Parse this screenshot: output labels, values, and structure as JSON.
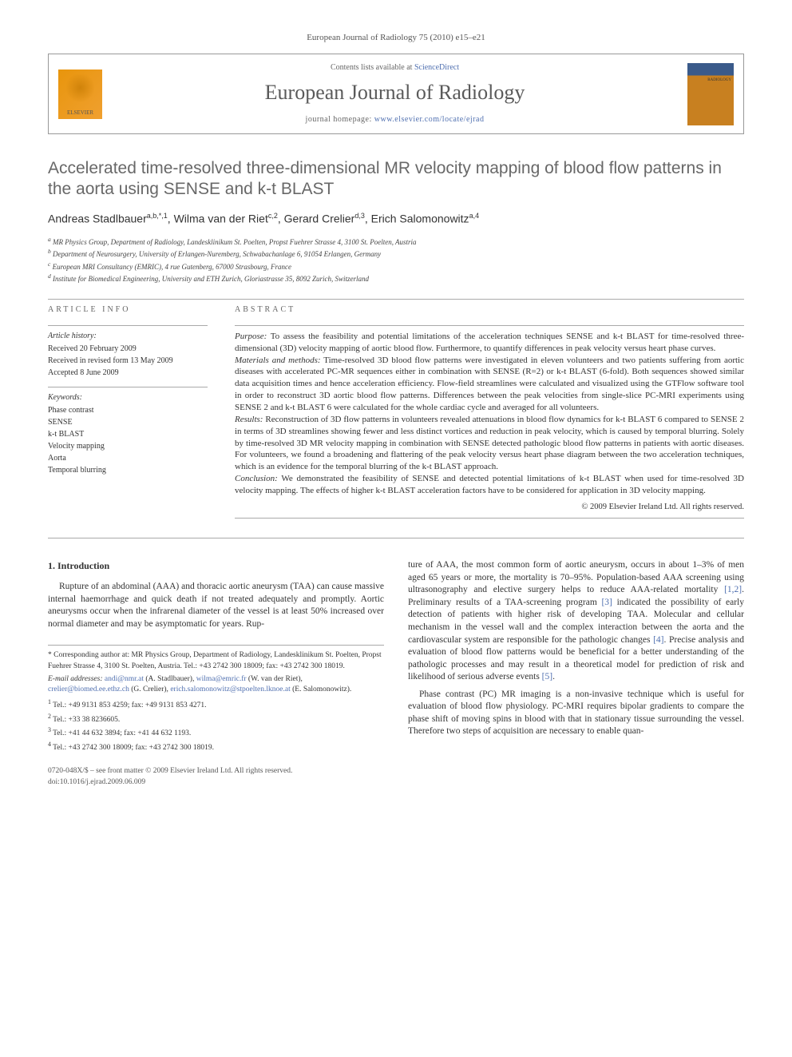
{
  "header": {
    "citation": "European Journal of Radiology 75 (2010) e15–e21",
    "contents_prefix": "Contents lists available at ",
    "contents_link": "ScienceDirect",
    "journal": "European Journal of Radiology",
    "homepage_prefix": "journal homepage: ",
    "homepage_link": "www.elsevier.com/locate/ejrad",
    "elsevier_label": "ELSEVIER"
  },
  "title": "Accelerated time-resolved three-dimensional MR velocity mapping of blood flow patterns in the aorta using SENSE and k-t BLAST",
  "authors_html": "Andreas Stadlbauer<sup>a,b,*,1</sup>, Wilma van der Riet<sup>c,2</sup>, Gerard Crelier<sup>d,3</sup>, Erich Salomonowitz<sup>a,4</sup>",
  "affiliations": [
    "a MR Physics Group, Department of Radiology, Landesklinikum St. Poelten, Propst Fuehrer Strasse 4, 3100 St. Poelten, Austria",
    "b Department of Neurosurgery, University of Erlangen-Nuremberg, Schwabachanlage 6, 91054 Erlangen, Germany",
    "c European MRI Consultancy (EMRIC), 4 rue Gutenberg, 67000 Strasbourg, France",
    "d Institute for Biomedical Engineering, University and ETH Zurich, Gloriastrasse 35, 8092 Zurich, Switzerland"
  ],
  "info": {
    "label": "ARTICLE INFO",
    "history_label": "Article history:",
    "history": [
      "Received 20 February 2009",
      "Received in revised form 13 May 2009",
      "Accepted 8 June 2009"
    ],
    "kw_label": "Keywords:",
    "keywords": [
      "Phase contrast",
      "SENSE",
      "k-t BLAST",
      "Velocity mapping",
      "Aorta",
      "Temporal blurring"
    ]
  },
  "abstract": {
    "label": "ABSTRACT",
    "segments": [
      {
        "h": "Purpose:",
        "t": " To assess the feasibility and potential limitations of the acceleration techniques SENSE and k-t BLAST for time-resolved three-dimensional (3D) velocity mapping of aortic blood flow. Furthermore, to quantify differences in peak velocity versus heart phase curves."
      },
      {
        "h": "Materials and methods:",
        "t": " Time-resolved 3D blood flow patterns were investigated in eleven volunteers and two patients suffering from aortic diseases with accelerated PC-MR sequences either in combination with SENSE (R=2) or k-t BLAST (6-fold). Both sequences showed similar data acquisition times and hence acceleration efficiency. Flow-field streamlines were calculated and visualized using the GTFlow software tool in order to reconstruct 3D aortic blood flow patterns. Differences between the peak velocities from single-slice PC-MRI experiments using SENSE 2 and k-t BLAST 6 were calculated for the whole cardiac cycle and averaged for all volunteers."
      },
      {
        "h": "Results:",
        "t": " Reconstruction of 3D flow patterns in volunteers revealed attenuations in blood flow dynamics for k-t BLAST 6 compared to SENSE 2 in terms of 3D streamlines showing fewer and less distinct vortices and reduction in peak velocity, which is caused by temporal blurring. Solely by time-resolved 3D MR velocity mapping in combination with SENSE detected pathologic blood flow patterns in patients with aortic diseases. For volunteers, we found a broadening and flattering of the peak velocity versus heart phase diagram between the two acceleration techniques, which is an evidence for the temporal blurring of the k-t BLAST approach."
      },
      {
        "h": "Conclusion:",
        "t": " We demonstrated the feasibility of SENSE and detected potential limitations of k-t BLAST when used for time-resolved 3D velocity mapping. The effects of higher k-t BLAST acceleration factors have to be considered for application in 3D velocity mapping."
      }
    ],
    "copyright": "© 2009 Elsevier Ireland Ltd. All rights reserved."
  },
  "body": {
    "intro_head": "1. Introduction",
    "col1": "Rupture of an abdominal (AAA) and thoracic aortic aneurysm (TAA) can cause massive internal haemorrhage and quick death if not treated adequately and promptly. Aortic aneurysms occur when the infrarenal diameter of the vessel is at least 50% increased over normal diameter and may be asymptomatic for years. Rup-",
    "col2a": "ture of AAA, the most common form of aortic aneurysm, occurs in about 1–3% of men aged 65 years or more, the mortality is 70–95%. Population-based AAA screening using ultrasonography and elective surgery helps to reduce AAA-related mortality ",
    "col2a_ref1": "[1,2]",
    "col2b": ". Preliminary results of a TAA-screening program ",
    "col2b_ref2": "[3]",
    "col2c": " indicated the possibility of early detection of patients with higher risk of developing TAA. Molecular and cellular mechanism in the vessel wall and the complex interaction between the aorta and the cardiovascular system are responsible for the pathologic changes ",
    "col2c_ref3": "[4]",
    "col2d": ". Precise analysis and evaluation of blood flow patterns would be beneficial for a better understanding of the pathologic processes and may result in a theoretical model for prediction of risk and likelihood of serious adverse events ",
    "col2d_ref4": "[5]",
    "col2e": ".",
    "col2p2": "Phase contrast (PC) MR imaging is a non-invasive technique which is useful for evaluation of blood flow physiology. PC-MRI requires bipolar gradients to compare the phase shift of moving spins in blood with that in stationary tissue surrounding the vessel. Therefore two steps of acquisition are necessary to enable quan-"
  },
  "footnotes": {
    "corr_prefix": "* Corresponding author at: MR Physics Group, Department of Radiology, Landesklinikum St. Poelten, Propst Fuehrer Strasse 4, 3100 St. Poelten, Austria. Tel.: +43 2742 300 18009; fax: +43 2742 300 18019.",
    "email_label": "E-mail addresses: ",
    "emails": [
      {
        "addr": "andi@nmr.at",
        "who": " (A. Stadlbauer), "
      },
      {
        "addr": "wilma@emric.fr",
        "who": " (W. van der Riet), "
      },
      {
        "addr": "crelier@biomed.ee.ethz.ch",
        "who": " (G. Crelier), "
      },
      {
        "addr": "erich.salomonowitz@stpoelten.lknoe.at",
        "who": " (E. Salomonowitz)."
      }
    ],
    "tels": [
      "1 Tel.: +49 9131 853 4259; fax: +49 9131 853 4271.",
      "2 Tel.: +33 38 8236605.",
      "3 Tel.: +41 44 632 3894; fax: +41 44 632 1193.",
      "4 Tel.: +43 2742 300 18009; fax: +43 2742 300 18019."
    ]
  },
  "footer": {
    "l1": "0720-048X/$ – see front matter © 2009 Elsevier Ireland Ltd. All rights reserved.",
    "l2": "doi:10.1016/j.ejrad.2009.06.009"
  },
  "colors": {
    "link": "#5070b0",
    "text": "#333333",
    "heading_gray": "#686868"
  }
}
